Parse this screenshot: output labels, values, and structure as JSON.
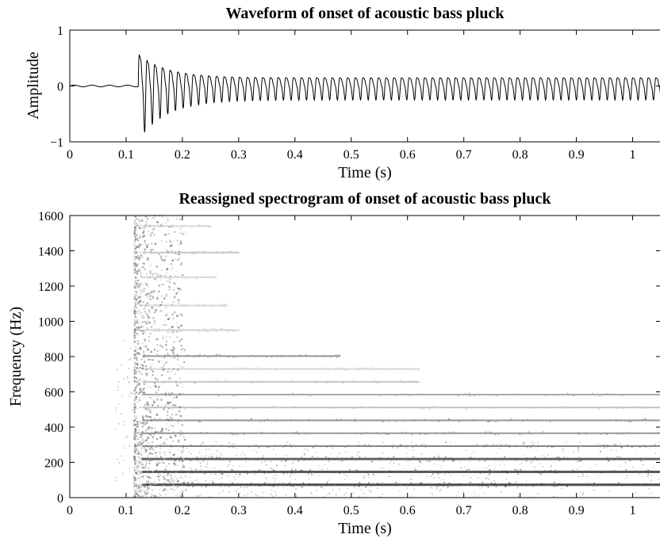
{
  "chart_data": [
    {
      "type": "line",
      "title": "Waveform of onset of acoustic bass pluck",
      "xlabel": "Time (s)",
      "ylabel": "Amplitude",
      "xlim": [
        0,
        1.05
      ],
      "ylim": [
        -1,
        1
      ],
      "xticks": [
        "0",
        "0.1",
        "0.2",
        "0.3",
        "0.4",
        "0.5",
        "0.6",
        "0.7",
        "0.8",
        "0.9",
        "1"
      ],
      "yticks": [
        "−1",
        "0",
        "1"
      ],
      "signal": {
        "onset_s": 0.122,
        "peak_amplitude": 0.78,
        "trough_amplitude": -0.9,
        "late_amplitude": 0.22,
        "fundamental_hz": 73,
        "approx_points": [
          {
            "t": 0.0,
            "a": 0.0
          },
          {
            "t": 0.12,
            "a": 0.02
          },
          {
            "t": 0.13,
            "a": 0.75
          },
          {
            "t": 0.137,
            "a": -0.88
          },
          {
            "t": 0.15,
            "a": 0.72
          },
          {
            "t": 0.157,
            "a": -0.9
          },
          {
            "t": 0.3,
            "a": 0.3
          },
          {
            "t": 0.5,
            "a": 0.22
          },
          {
            "t": 1.05,
            "a": 0.2
          }
        ]
      },
      "grid": false,
      "color": "#000000"
    },
    {
      "type": "scatter",
      "title": "Reassigned spectrogram of onset of acoustic bass pluck",
      "xlabel": "Time (s)",
      "ylabel": "Frequency (Hz)",
      "xlim": [
        0,
        1.05
      ],
      "ylim": [
        0,
        1600
      ],
      "xticks": [
        "0",
        "0.1",
        "0.2",
        "0.3",
        "0.4",
        "0.5",
        "0.6",
        "0.7",
        "0.8",
        "0.9",
        "1"
      ],
      "yticks": [
        "0",
        "200",
        "400",
        "600",
        "800",
        "1000",
        "1200",
        "1400",
        "1600"
      ],
      "onset_s": 0.125,
      "harmonics": [
        {
          "freq_hz": 73,
          "t_end_s": 1.05,
          "gray": "#3a3a3a"
        },
        {
          "freq_hz": 146,
          "t_end_s": 1.05,
          "gray": "#474747"
        },
        {
          "freq_hz": 219,
          "t_end_s": 1.05,
          "gray": "#555555"
        },
        {
          "freq_hz": 292,
          "t_end_s": 1.05,
          "gray": "#7a7a7a"
        },
        {
          "freq_hz": 365,
          "t_end_s": 1.05,
          "gray": "#8c8c8c"
        },
        {
          "freq_hz": 438,
          "t_end_s": 1.05,
          "gray": "#8a8a8a"
        },
        {
          "freq_hz": 511,
          "t_end_s": 1.05,
          "gray": "#bdbdbd"
        },
        {
          "freq_hz": 584,
          "t_end_s": 1.05,
          "gray": "#a0a0a0"
        },
        {
          "freq_hz": 657,
          "t_end_s": 0.62,
          "gray": "#c2c2c2"
        },
        {
          "freq_hz": 730,
          "t_end_s": 0.62,
          "gray": "#d2d2d2"
        },
        {
          "freq_hz": 803,
          "t_end_s": 0.48,
          "gray": "#8c8c8c"
        },
        {
          "freq_hz": 950,
          "t_end_s": 0.3,
          "gray": "#cfcfcf"
        },
        {
          "freq_hz": 1090,
          "t_end_s": 0.28,
          "gray": "#d4d4d4"
        },
        {
          "freq_hz": 1250,
          "t_end_s": 0.26,
          "gray": "#d9d9d9"
        },
        {
          "freq_hz": 1390,
          "t_end_s": 0.3,
          "gray": "#c4c4c4"
        },
        {
          "freq_hz": 1540,
          "t_end_s": 0.25,
          "gray": "#d6d6d6"
        }
      ],
      "grid": false
    }
  ]
}
